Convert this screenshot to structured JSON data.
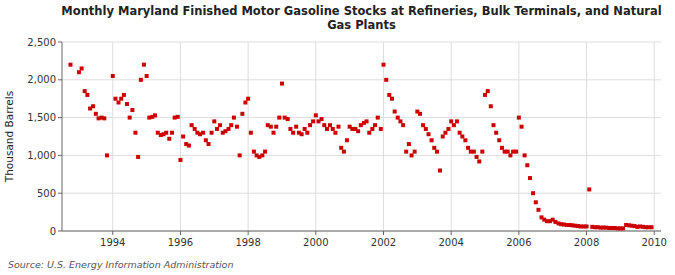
{
  "chart_data": {
    "type": "scatter",
    "title": "Monthly Maryland Finished Motor Gasoline Stocks at Refineries, Bulk Terminals, and Natural\nGas Plants",
    "ylabel": "Thousand Barrels",
    "source": "Source: U.S. Energy Information Administration",
    "color": "#cc0000",
    "marker": "square",
    "grid": true,
    "xlim": [
      1992.5,
      2010.2
    ],
    "ylim": [
      0,
      2500
    ],
    "xticks": [
      1994,
      1996,
      1998,
      2000,
      2002,
      2004,
      2006,
      2008,
      2010
    ],
    "yticks": [
      0,
      500,
      {
        "value": 1000,
        "label": "1,000"
      },
      {
        "value": 1500,
        "label": "1,500"
      },
      {
        "value": 2000,
        "label": "2,000"
      },
      {
        "value": 2500,
        "label": "2,500"
      }
    ],
    "x": [
      1992.75,
      1993.0,
      1993.08,
      1993.17,
      1993.25,
      1993.33,
      1993.42,
      1993.5,
      1993.58,
      1993.67,
      1993.75,
      1993.83,
      1994.0,
      1994.08,
      1994.17,
      1994.25,
      1994.33,
      1994.42,
      1994.5,
      1994.58,
      1994.67,
      1994.75,
      1994.83,
      1994.92,
      1995.0,
      1995.08,
      1995.17,
      1995.25,
      1995.33,
      1995.42,
      1995.5,
      1995.58,
      1995.67,
      1995.75,
      1995.83,
      1995.92,
      1996.0,
      1996.08,
      1996.17,
      1996.25,
      1996.33,
      1996.42,
      1996.5,
      1996.58,
      1996.67,
      1996.75,
      1996.83,
      1996.92,
      1997.0,
      1997.08,
      1997.17,
      1997.25,
      1997.33,
      1997.42,
      1997.5,
      1997.58,
      1997.67,
      1997.75,
      1997.83,
      1997.92,
      1998.0,
      1998.08,
      1998.17,
      1998.25,
      1998.33,
      1998.42,
      1998.5,
      1998.58,
      1998.67,
      1998.75,
      1998.83,
      1998.92,
      1999.0,
      1999.08,
      1999.17,
      1999.25,
      1999.33,
      1999.42,
      1999.5,
      1999.58,
      1999.67,
      1999.75,
      1999.83,
      1999.92,
      2000.0,
      2000.08,
      2000.17,
      2000.25,
      2000.33,
      2000.42,
      2000.5,
      2000.58,
      2000.67,
      2000.75,
      2000.83,
      2000.92,
      2001.0,
      2001.08,
      2001.17,
      2001.25,
      2001.33,
      2001.42,
      2001.5,
      2001.58,
      2001.67,
      2001.75,
      2001.83,
      2001.92,
      2002.0,
      2002.08,
      2002.17,
      2002.25,
      2002.33,
      2002.42,
      2002.5,
      2002.58,
      2002.67,
      2002.75,
      2002.83,
      2002.92,
      2003.0,
      2003.08,
      2003.17,
      2003.25,
      2003.33,
      2003.42,
      2003.5,
      2003.58,
      2003.67,
      2003.75,
      2003.83,
      2003.92,
      2004.0,
      2004.08,
      2004.17,
      2004.25,
      2004.33,
      2004.42,
      2004.5,
      2004.58,
      2004.67,
      2004.75,
      2004.83,
      2004.92,
      2005.0,
      2005.08,
      2005.17,
      2005.25,
      2005.33,
      2005.42,
      2005.5,
      2005.58,
      2005.67,
      2005.75,
      2005.83,
      2005.92,
      2006.0,
      2006.08,
      2006.17,
      2006.25,
      2006.33,
      2006.42,
      2006.5,
      2006.58,
      2006.67,
      2006.75,
      2006.83,
      2006.92,
      2007.0,
      2007.08,
      2007.17,
      2007.25,
      2007.33,
      2007.42,
      2007.5,
      2007.58,
      2007.67,
      2007.75,
      2007.83,
      2007.92,
      2008.0,
      2008.08,
      2008.17,
      2008.25,
      2008.33,
      2008.42,
      2008.5,
      2008.58,
      2008.67,
      2008.75,
      2008.83,
      2008.92,
      2009.0,
      2009.08,
      2009.17,
      2009.25,
      2009.33,
      2009.42,
      2009.5,
      2009.58,
      2009.67,
      2009.75,
      2009.83,
      2009.92
    ],
    "values": [
      2200,
      2100,
      2150,
      1850,
      1800,
      1620,
      1650,
      1550,
      1490,
      1500,
      1490,
      1000,
      2050,
      1750,
      1700,
      1750,
      1800,
      1680,
      1500,
      1600,
      1300,
      980,
      2000,
      2200,
      2050,
      1500,
      1510,
      1530,
      1300,
      1270,
      1280,
      1300,
      1220,
      1300,
      1500,
      1510,
      940,
      1250,
      1150,
      1130,
      1400,
      1350,
      1300,
      1280,
      1300,
      1200,
      1150,
      1300,
      1450,
      1350,
      1400,
      1300,
      1320,
      1350,
      1400,
      1500,
      1380,
      1000,
      1550,
      1700,
      1750,
      1300,
      1050,
      1000,
      980,
      1000,
      1050,
      1400,
      1380,
      1300,
      1380,
      1500,
      1950,
      1500,
      1480,
      1350,
      1300,
      1380,
      1300,
      1280,
      1350,
      1300,
      1400,
      1450,
      1530,
      1450,
      1480,
      1400,
      1350,
      1400,
      1350,
      1300,
      1380,
      1100,
      1050,
      1200,
      1380,
      1350,
      1350,
      1320,
      1400,
      1430,
      1450,
      1300,
      1350,
      1400,
      1500,
      1350,
      2200,
      2000,
      1800,
      1750,
      1580,
      1500,
      1450,
      1400,
      1050,
      1150,
      1000,
      1050,
      1580,
      1550,
      1400,
      1350,
      1280,
      1200,
      1100,
      1050,
      800,
      1250,
      1300,
      1350,
      1450,
      1400,
      1450,
      1300,
      1250,
      1200,
      1100,
      1050,
      1050,
      980,
      920,
      1050,
      1800,
      1850,
      1650,
      1400,
      1300,
      1200,
      1100,
      1050,
      1050,
      1000,
      1050,
      1050,
      1500,
      1380,
      1000,
      870,
      700,
      500,
      380,
      280,
      180,
      150,
      130,
      130,
      150,
      120,
      100,
      90,
      85,
      80,
      80,
      75,
      70,
      65,
      60,
      60,
      60,
      550,
      55,
      50,
      50,
      45,
      45,
      45,
      40,
      40,
      40,
      35,
      35,
      35,
      80,
      75,
      70,
      65,
      55,
      60,
      55,
      50,
      50,
      50
    ]
  }
}
